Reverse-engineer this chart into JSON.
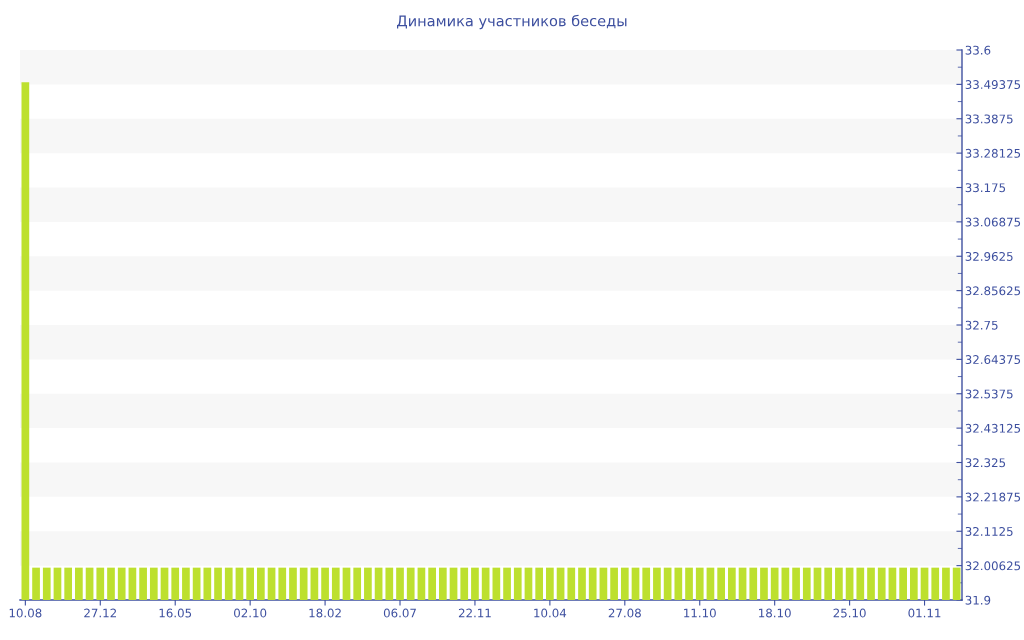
{
  "chart_data": {
    "type": "bar",
    "title": "Динамика участников беседы",
    "categories": [
      "10.08",
      null,
      null,
      null,
      null,
      null,
      null,
      "27.12",
      null,
      null,
      null,
      null,
      null,
      null,
      "16.05",
      null,
      null,
      null,
      null,
      null,
      null,
      "02.10",
      null,
      null,
      null,
      null,
      null,
      null,
      "18.02",
      null,
      null,
      null,
      null,
      null,
      null,
      "06.07",
      null,
      null,
      null,
      null,
      null,
      null,
      "22.11",
      null,
      null,
      null,
      null,
      null,
      null,
      "10.04",
      null,
      null,
      null,
      null,
      null,
      null,
      "27.08",
      null,
      null,
      null,
      null,
      null,
      null,
      "11.10",
      null,
      null,
      null,
      null,
      null,
      null,
      "18.10",
      null,
      null,
      null,
      null,
      null,
      null,
      "25.10",
      null,
      null,
      null,
      null,
      null,
      null,
      "01.11",
      null,
      null,
      null
    ],
    "values": [
      33.5,
      32,
      32,
      32,
      32,
      32,
      32,
      32,
      32,
      32,
      32,
      32,
      32,
      32,
      32,
      32,
      32,
      32,
      32,
      32,
      32,
      32,
      32,
      32,
      32,
      32,
      32,
      32,
      32,
      32,
      32,
      32,
      32,
      32,
      32,
      32,
      32,
      32,
      32,
      32,
      32,
      32,
      32,
      32,
      32,
      32,
      32,
      32,
      32,
      32,
      32,
      32,
      32,
      32,
      32,
      32,
      32,
      32,
      32,
      32,
      32,
      32,
      32,
      32,
      32,
      32,
      32,
      32,
      32,
      32,
      32,
      32,
      32,
      32,
      32,
      32,
      32,
      32,
      32,
      32,
      32,
      32,
      32,
      32,
      32,
      32,
      32,
      32
    ],
    "color": "#bde02e",
    "ylim": [
      31.9,
      33.6
    ],
    "yticks": [
      31.9,
      32.00625,
      32.1125,
      32.21875,
      32.325,
      32.43125,
      32.5375,
      32.64375,
      32.75,
      32.85625,
      32.9625,
      33.06875,
      33.175,
      33.28125,
      33.3875,
      33.49375,
      33.6
    ],
    "bands": [
      {
        "axis": "y",
        "from": 32.00625,
        "to": 32.1125,
        "color": "#f7f7f7"
      },
      {
        "axis": "y",
        "from": 32.21875,
        "to": 32.325,
        "color": "#f7f7f7"
      },
      {
        "axis": "y",
        "from": 32.43125,
        "to": 32.5375,
        "color": "#f7f7f7"
      },
      {
        "axis": "y",
        "from": 32.64375,
        "to": 32.75,
        "color": "#f7f7f7"
      },
      {
        "axis": "y",
        "from": 32.85625,
        "to": 32.9625,
        "color": "#f7f7f7"
      },
      {
        "axis": "y",
        "from": 33.06875,
        "to": 33.175,
        "color": "#f7f7f7"
      },
      {
        "axis": "y",
        "from": 33.28125,
        "to": 33.3875,
        "color": "#f7f7f7"
      },
      {
        "axis": "y",
        "from": 33.49375,
        "to": 33.6,
        "color": "#f7f7f7"
      }
    ]
  }
}
